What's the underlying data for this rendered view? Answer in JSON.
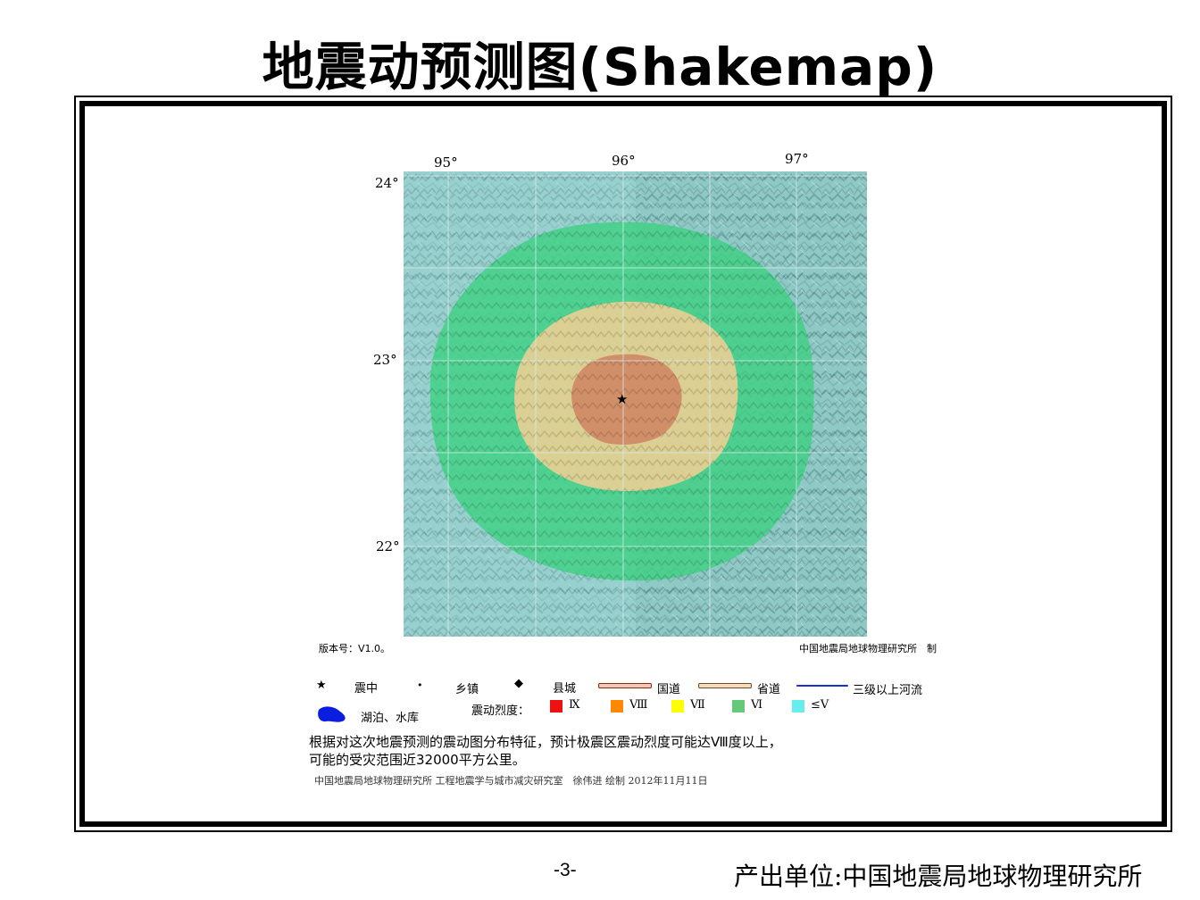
{
  "title": "地震动预测图(Shakemap)",
  "map": {
    "lon_labels": [
      "95°",
      "96°",
      "97°"
    ],
    "lat_labels": [
      "24°",
      "23°",
      "22°"
    ],
    "version_label": "版本号：V1.0。",
    "producer_label": "中国地震局地球物理研究所　制",
    "epicenter": {
      "lon": 96.0,
      "lat": 22.8
    },
    "zones": [
      {
        "intensity": "IX",
        "color": "#d4896a"
      },
      {
        "intensity": "Ⅷ",
        "color": "#e8d090"
      },
      {
        "intensity": "Ⅶ",
        "color": "#4fcf8a"
      },
      {
        "intensity": "Ⅵ",
        "color": "#4fcf8a"
      },
      {
        "intensity": "≤Ⅴ",
        "color": "#8fd0d0"
      }
    ]
  },
  "legend": {
    "epicenter": "震中",
    "town": "乡镇",
    "county": "县城",
    "national_road": "国道",
    "provincial_road": "省道",
    "river": "三级以上河流",
    "lake": "湖泊、水库",
    "intensity_label": "震动烈度：",
    "intensities": [
      {
        "label": "Ⅸ",
        "color": "#ee1111"
      },
      {
        "label": "Ⅷ",
        "color": "#ff8800"
      },
      {
        "label": "Ⅶ",
        "color": "#ffff00"
      },
      {
        "label": "Ⅵ",
        "color": "#66c97a"
      },
      {
        "label": "≤Ⅴ",
        "color": "#66eeee"
      }
    ]
  },
  "description": {
    "line1": "根据对这次地震预测的震动图分布特征，预计极震区震动烈度可能达Ⅷ度以上，",
    "line2": "可能的受灾范围近32000平方公里。"
  },
  "credit": "中国地震局地球物理研究所 工程地震学与城市减灾研究室　徐伟进 绘制 2012年11月11日",
  "footer": {
    "page": "-3-",
    "org": "产出单位:中国地震局地球物理研究所"
  }
}
